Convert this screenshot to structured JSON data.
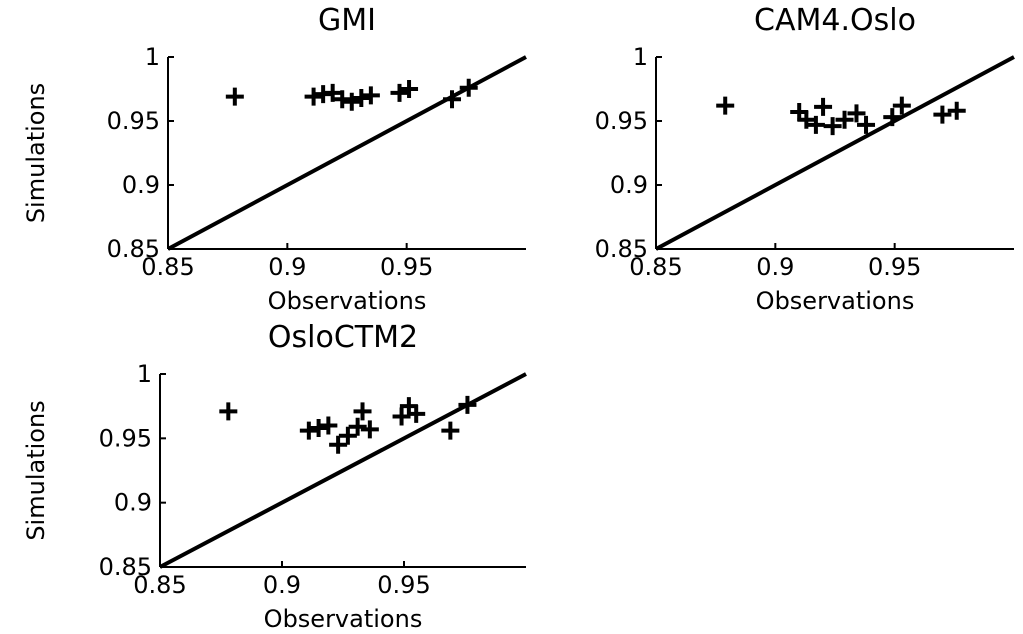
{
  "chart_data": [
    {
      "type": "scatter",
      "title": "GMI",
      "xlabel": "Observations",
      "ylabel": "Simulations",
      "xlim": [
        0.85,
        1.0
      ],
      "ylim": [
        0.85,
        1.0
      ],
      "xticks": [
        "0.85",
        "0.9",
        "0.95"
      ],
      "yticks": [
        "0.85",
        "0.9",
        "0.95",
        "1"
      ],
      "marker": "+",
      "reference_line": "1:1",
      "grid": false,
      "points": [
        {
          "x": 0.878,
          "y": 0.969
        },
        {
          "x": 0.911,
          "y": 0.969
        },
        {
          "x": 0.915,
          "y": 0.971
        },
        {
          "x": 0.919,
          "y": 0.972
        },
        {
          "x": 0.923,
          "y": 0.967
        },
        {
          "x": 0.927,
          "y": 0.965
        },
        {
          "x": 0.931,
          "y": 0.968
        },
        {
          "x": 0.935,
          "y": 0.97
        },
        {
          "x": 0.947,
          "y": 0.972
        },
        {
          "x": 0.951,
          "y": 0.975
        },
        {
          "x": 0.969,
          "y": 0.967
        },
        {
          "x": 0.976,
          "y": 0.976
        }
      ]
    },
    {
      "type": "scatter",
      "title": "CAM4.Oslo",
      "xlabel": "Observations",
      "ylabel": "",
      "xlim": [
        0.85,
        1.0
      ],
      "ylim": [
        0.85,
        1.0
      ],
      "xticks": [
        "0.85",
        "0.9",
        "0.95"
      ],
      "yticks": [
        "0.85",
        "0.9",
        "0.95",
        "1"
      ],
      "marker": "+",
      "reference_line": "1:1",
      "grid": false,
      "points": [
        {
          "x": 0.879,
          "y": 0.962
        },
        {
          "x": 0.91,
          "y": 0.957
        },
        {
          "x": 0.913,
          "y": 0.951
        },
        {
          "x": 0.917,
          "y": 0.947
        },
        {
          "x": 0.92,
          "y": 0.961
        },
        {
          "x": 0.924,
          "y": 0.946
        },
        {
          "x": 0.929,
          "y": 0.951
        },
        {
          "x": 0.934,
          "y": 0.956
        },
        {
          "x": 0.938,
          "y": 0.947
        },
        {
          "x": 0.949,
          "y": 0.953
        },
        {
          "x": 0.953,
          "y": 0.962
        },
        {
          "x": 0.97,
          "y": 0.955
        },
        {
          "x": 0.976,
          "y": 0.958
        }
      ]
    },
    {
      "type": "scatter",
      "title": "OsloCTM2",
      "xlabel": "Observations",
      "ylabel": "Simulations",
      "xlim": [
        0.85,
        1.0
      ],
      "ylim": [
        0.85,
        1.0
      ],
      "xticks": [
        "0.85",
        "0.9",
        "0.95"
      ],
      "yticks": [
        "0.85",
        "0.9",
        "0.95",
        "1"
      ],
      "marker": "+",
      "reference_line": "1:1",
      "grid": false,
      "points": [
        {
          "x": 0.878,
          "y": 0.971
        },
        {
          "x": 0.911,
          "y": 0.956
        },
        {
          "x": 0.915,
          "y": 0.958
        },
        {
          "x": 0.919,
          "y": 0.96
        },
        {
          "x": 0.923,
          "y": 0.945
        },
        {
          "x": 0.927,
          "y": 0.952
        },
        {
          "x": 0.931,
          "y": 0.959
        },
        {
          "x": 0.933,
          "y": 0.971
        },
        {
          "x": 0.936,
          "y": 0.957
        },
        {
          "x": 0.949,
          "y": 0.967
        },
        {
          "x": 0.952,
          "y": 0.975
        },
        {
          "x": 0.955,
          "y": 0.969
        },
        {
          "x": 0.969,
          "y": 0.956
        },
        {
          "x": 0.976,
          "y": 0.976
        }
      ]
    }
  ]
}
